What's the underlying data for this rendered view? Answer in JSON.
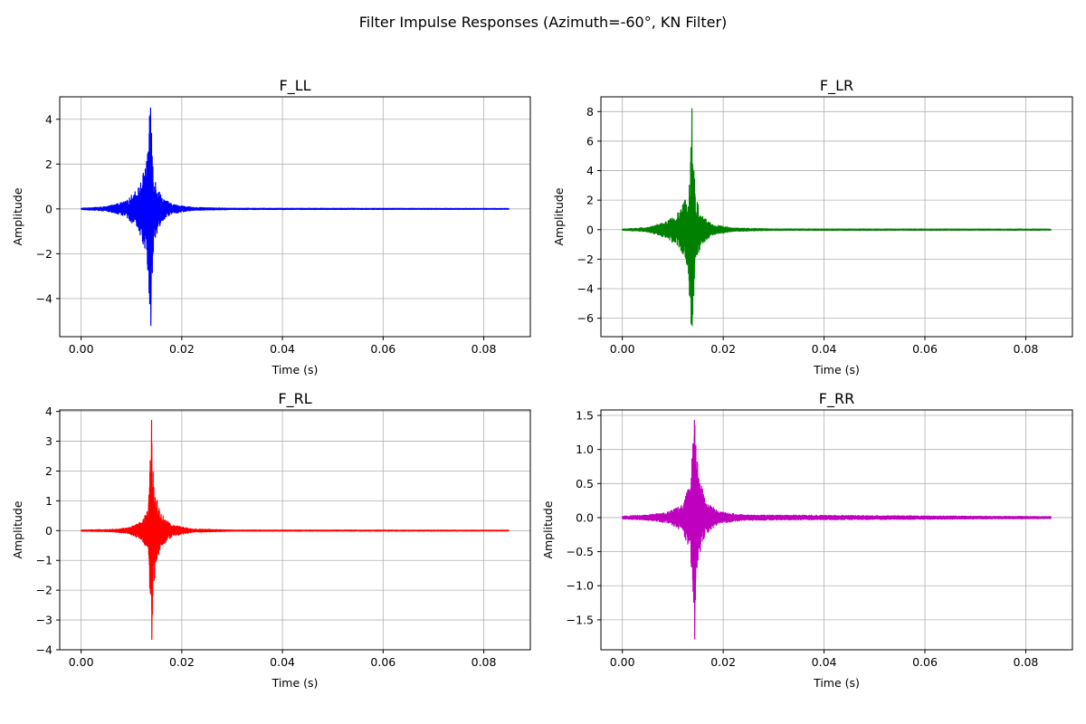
{
  "figure": {
    "title": "Filter Impulse Responses (Azimuth=-60°, KN Filter)"
  },
  "chart_data": [
    {
      "type": "line",
      "title": "F_LL",
      "xlabel": "Time (s)",
      "ylabel": "Amplitude",
      "xlim": [
        -0.00425,
        0.08925
      ],
      "ylim": [
        -5.7,
        5.0
      ],
      "xticks": [
        0.0,
        0.02,
        0.04,
        0.06,
        0.08
      ],
      "xtick_labels": [
        "0.00",
        "0.02",
        "0.04",
        "0.06",
        "0.08"
      ],
      "yticks": [
        -4,
        -2,
        0,
        2,
        4
      ],
      "ytick_labels": [
        "−4",
        "−2",
        "0",
        "2",
        "4"
      ],
      "grid": true,
      "color": "#0000ff",
      "duration": 0.085,
      "peak_time": 0.0138,
      "peak_max": 4.5,
      "peak_min": -5.2,
      "envelope": [
        [
          0.0,
          0.03
        ],
        [
          0.005,
          0.1
        ],
        [
          0.009,
          0.35
        ],
        [
          0.0115,
          1.0
        ],
        [
          0.013,
          2.1
        ],
        [
          0.0138,
          4.8
        ],
        [
          0.0145,
          1.5
        ],
        [
          0.016,
          0.55
        ],
        [
          0.018,
          0.22
        ],
        [
          0.022,
          0.07
        ],
        [
          0.03,
          0.03
        ],
        [
          0.085,
          0.02
        ]
      ]
    },
    {
      "type": "line",
      "title": "F_LR",
      "xlabel": "Time (s)",
      "ylabel": "Amplitude",
      "xlim": [
        -0.00425,
        0.08925
      ],
      "ylim": [
        -7.25,
        9.0
      ],
      "xticks": [
        0.0,
        0.02,
        0.04,
        0.06,
        0.08
      ],
      "xtick_labels": [
        "0.00",
        "0.02",
        "0.04",
        "0.06",
        "0.08"
      ],
      "yticks": [
        -6,
        -4,
        -2,
        0,
        2,
        4,
        6,
        8
      ],
      "ytick_labels": [
        "−6",
        "−4",
        "−2",
        "0",
        "2",
        "4",
        "6",
        "8"
      ],
      "grid": true,
      "color": "#008000",
      "duration": 0.085,
      "peak_time": 0.0138,
      "peak_max": 8.2,
      "peak_min": -6.5,
      "envelope": [
        [
          0.0,
          0.04
        ],
        [
          0.005,
          0.15
        ],
        [
          0.009,
          0.6
        ],
        [
          0.0115,
          1.3
        ],
        [
          0.013,
          2.6
        ],
        [
          0.0138,
          7.5
        ],
        [
          0.0145,
          2.2
        ],
        [
          0.016,
          0.9
        ],
        [
          0.018,
          0.35
        ],
        [
          0.022,
          0.12
        ],
        [
          0.03,
          0.05
        ],
        [
          0.085,
          0.04
        ]
      ]
    },
    {
      "type": "line",
      "title": "F_RL",
      "xlabel": "Time (s)",
      "ylabel": "Amplitude",
      "xlim": [
        -0.00425,
        0.08925
      ],
      "ylim": [
        -4.0,
        4.05
      ],
      "xticks": [
        0.0,
        0.02,
        0.04,
        0.06,
        0.08
      ],
      "xtick_labels": [
        "0.00",
        "0.02",
        "0.04",
        "0.06",
        "0.08"
      ],
      "yticks": [
        -4,
        -3,
        -2,
        -1,
        0,
        1,
        2,
        3,
        4
      ],
      "ytick_labels": [
        "−4",
        "−3",
        "−2",
        "−1",
        "0",
        "1",
        "2",
        "3",
        "4"
      ],
      "grid": true,
      "color": "#ff0000",
      "duration": 0.085,
      "peak_time": 0.014,
      "peak_max": 3.7,
      "peak_min": -3.65,
      "envelope": [
        [
          0.0,
          0.02
        ],
        [
          0.006,
          0.04
        ],
        [
          0.0095,
          0.1
        ],
        [
          0.012,
          0.3
        ],
        [
          0.0133,
          0.7
        ],
        [
          0.014,
          3.4
        ],
        [
          0.0148,
          1.2
        ],
        [
          0.016,
          0.55
        ],
        [
          0.018,
          0.2
        ],
        [
          0.022,
          0.06
        ],
        [
          0.03,
          0.02
        ],
        [
          0.085,
          0.015
        ]
      ]
    },
    {
      "type": "line",
      "title": "F_RR",
      "xlabel": "Time (s)",
      "ylabel": "Amplitude",
      "xlim": [
        -0.00425,
        0.08925
      ],
      "ylim": [
        -1.94,
        1.58
      ],
      "xticks": [
        0.0,
        0.02,
        0.04,
        0.06,
        0.08
      ],
      "xtick_labels": [
        "0.00",
        "0.02",
        "0.04",
        "0.06",
        "0.08"
      ],
      "yticks": [
        -1.5,
        -1.0,
        -0.5,
        0.0,
        0.5,
        1.0,
        1.5
      ],
      "ytick_labels": [
        "−1.5",
        "−1.0",
        "−0.5",
        "0.0",
        "0.5",
        "1.0",
        "1.5"
      ],
      "grid": true,
      "color": "#bf00bf",
      "duration": 0.085,
      "peak_time": 0.0143,
      "peak_max": 1.43,
      "peak_min": -1.78,
      "envelope": [
        [
          0.0,
          0.02
        ],
        [
          0.005,
          0.04
        ],
        [
          0.009,
          0.08
        ],
        [
          0.012,
          0.2
        ],
        [
          0.0135,
          0.55
        ],
        [
          0.0143,
          1.45
        ],
        [
          0.015,
          0.7
        ],
        [
          0.0165,
          0.25
        ],
        [
          0.019,
          0.09
        ],
        [
          0.024,
          0.04
        ],
        [
          0.085,
          0.015
        ]
      ]
    }
  ]
}
